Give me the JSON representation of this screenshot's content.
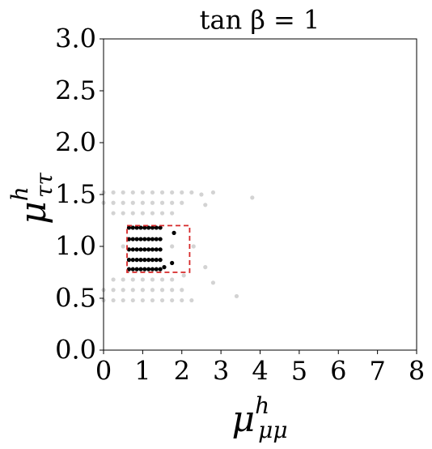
{
  "chart_data": {
    "type": "scatter",
    "title": "tan β = 1",
    "xlabel": {
      "base": "μ",
      "sup": "h",
      "sub": "μμ"
    },
    "ylabel": {
      "base": "μ",
      "sup": "h",
      "sub": "ττ"
    },
    "xlim": [
      0,
      8
    ],
    "ylim": [
      0,
      3
    ],
    "xticks": [
      0,
      1,
      2,
      3,
      4,
      5,
      6,
      7,
      8
    ],
    "yticks": [
      {
        "value": 0,
        "label": "0.0"
      },
      {
        "value": 0.5,
        "label": "0.5"
      },
      {
        "value": 1,
        "label": "1.0"
      },
      {
        "value": 1.5,
        "label": "1.5"
      },
      {
        "value": 2,
        "label": "2.0"
      },
      {
        "value": 2.5,
        "label": "2.5"
      },
      {
        "value": 3,
        "label": "3.0"
      }
    ],
    "series": [
      {
        "color": "#d3d3d3",
        "x": [
          0,
          0.25,
          0.5,
          0.75,
          1,
          1.25,
          1.5,
          1.75,
          2,
          2.25,
          0,
          0.25,
          0.5,
          0.75,
          1,
          1.25,
          1.5,
          1.75,
          2,
          0.25,
          0.5,
          0.75,
          1,
          1.25,
          1.5,
          1.75,
          0.5,
          1.75,
          0.25,
          0.5,
          0.75,
          1,
          1.25,
          1.5,
          1.75,
          0,
          0.25,
          0.5,
          0.75,
          1,
          1.25,
          1.5,
          1.75,
          2,
          0,
          0.25,
          0.5,
          0.75,
          1,
          1.25,
          1.5,
          1.75,
          2,
          2.25,
          2.5,
          3.8,
          2.8,
          3.4,
          2.8,
          2.6,
          2.3,
          2.05,
          2.6
        ],
        "y": [
          1.52,
          1.52,
          1.52,
          1.52,
          1.52,
          1.52,
          1.52,
          1.52,
          1.52,
          1.52,
          1.42,
          1.42,
          1.42,
          1.42,
          1.42,
          1.42,
          1.42,
          1.42,
          1.42,
          1.32,
          1.32,
          1.32,
          1.32,
          1.32,
          1.32,
          1.32,
          1.0,
          1.0,
          0.68,
          0.68,
          0.68,
          0.68,
          0.68,
          0.68,
          0.68,
          0.58,
          0.58,
          0.58,
          0.58,
          0.58,
          0.58,
          0.58,
          0.58,
          0.58,
          0.48,
          0.48,
          0.48,
          0.48,
          0.48,
          0.48,
          0.48,
          0.48,
          0.48,
          0.48,
          1.5,
          1.47,
          1.52,
          0.52,
          0.65,
          0.8,
          1.0,
          0.72,
          1.4
        ]
      },
      {
        "color": "#000000",
        "x": [
          0.65,
          0.75,
          0.85,
          0.95,
          1.05,
          1.15,
          1.25,
          1.35,
          1.45,
          0.65,
          0.75,
          0.85,
          0.95,
          1.05,
          1.15,
          1.25,
          1.35,
          1.45,
          0.65,
          0.75,
          0.85,
          0.95,
          1.05,
          1.15,
          1.25,
          1.35,
          1.45,
          0.65,
          0.75,
          0.85,
          0.95,
          1.05,
          1.15,
          1.25,
          1.35,
          1.45,
          0.65,
          0.75,
          0.85,
          0.95,
          1.05,
          1.15,
          1.25,
          1.35,
          1.45,
          1.8,
          1.75,
          1.55
        ],
        "y": [
          1.18,
          1.18,
          1.18,
          1.18,
          1.18,
          1.18,
          1.18,
          1.18,
          1.18,
          1.07,
          1.07,
          1.07,
          1.07,
          1.07,
          1.07,
          1.07,
          1.07,
          1.07,
          0.97,
          0.97,
          0.97,
          0.97,
          0.97,
          0.97,
          0.97,
          0.97,
          0.97,
          0.87,
          0.87,
          0.87,
          0.87,
          0.87,
          0.87,
          0.87,
          0.87,
          0.87,
          0.78,
          0.78,
          0.78,
          0.78,
          0.78,
          0.78,
          0.78,
          0.78,
          0.78,
          1.13,
          0.84,
          0.8
        ]
      }
    ],
    "region": {
      "xlim": [
        0.6,
        2.2
      ],
      "ylim": [
        0.75,
        1.2
      ],
      "color": "#d62728"
    }
  }
}
